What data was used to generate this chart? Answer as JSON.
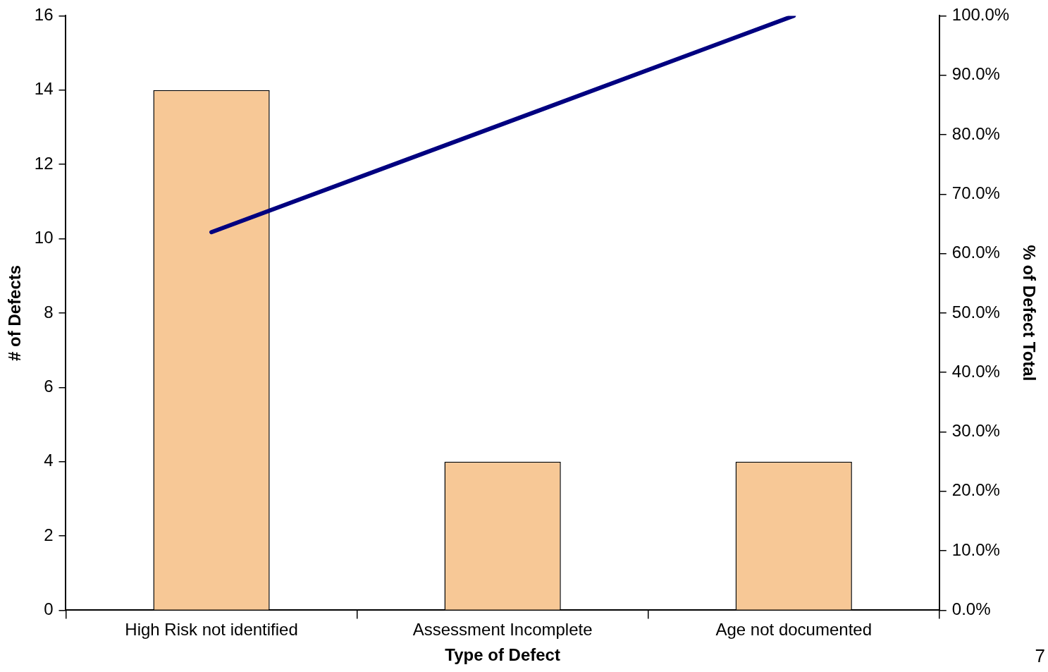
{
  "chart_data": {
    "type": "bar",
    "xlabel": "Type of Defect",
    "ylabel": "# of Defects",
    "y2label": "% of Defect Total",
    "categories": [
      "High Risk not identified",
      "Assessment Incomplete",
      "Age not documented"
    ],
    "series": [
      {
        "color": "#f7c896",
        "values": [
          14,
          4,
          4
        ]
      },
      {
        "type": "line",
        "axis": "y2",
        "color": "#000080",
        "values": [
          63.6,
          81.8,
          100
        ]
      }
    ],
    "ylim": [
      0,
      16
    ],
    "yticks": [
      0,
      2,
      4,
      6,
      8,
      10,
      12,
      14,
      16
    ],
    "y2lim": [
      0,
      100
    ],
    "y2ticks": [
      {
        "value": 0,
        "label": "0.0%"
      },
      {
        "value": 10,
        "label": "10.0%"
      },
      {
        "value": 20,
        "label": "20.0%"
      },
      {
        "value": 30,
        "label": "30.0%"
      },
      {
        "value": 40,
        "label": "40.0%"
      },
      {
        "value": 50,
        "label": "50.0%"
      },
      {
        "value": 60,
        "label": "60.0%"
      },
      {
        "value": 70,
        "label": "70.0%"
      },
      {
        "value": 80,
        "label": "80.0%"
      },
      {
        "value": 90,
        "label": "90.0%"
      },
      {
        "value": 100,
        "label": "100.0%"
      }
    ],
    "grid": false,
    "legend": false,
    "marker": "none",
    "annotations": [
      "7"
    ]
  }
}
